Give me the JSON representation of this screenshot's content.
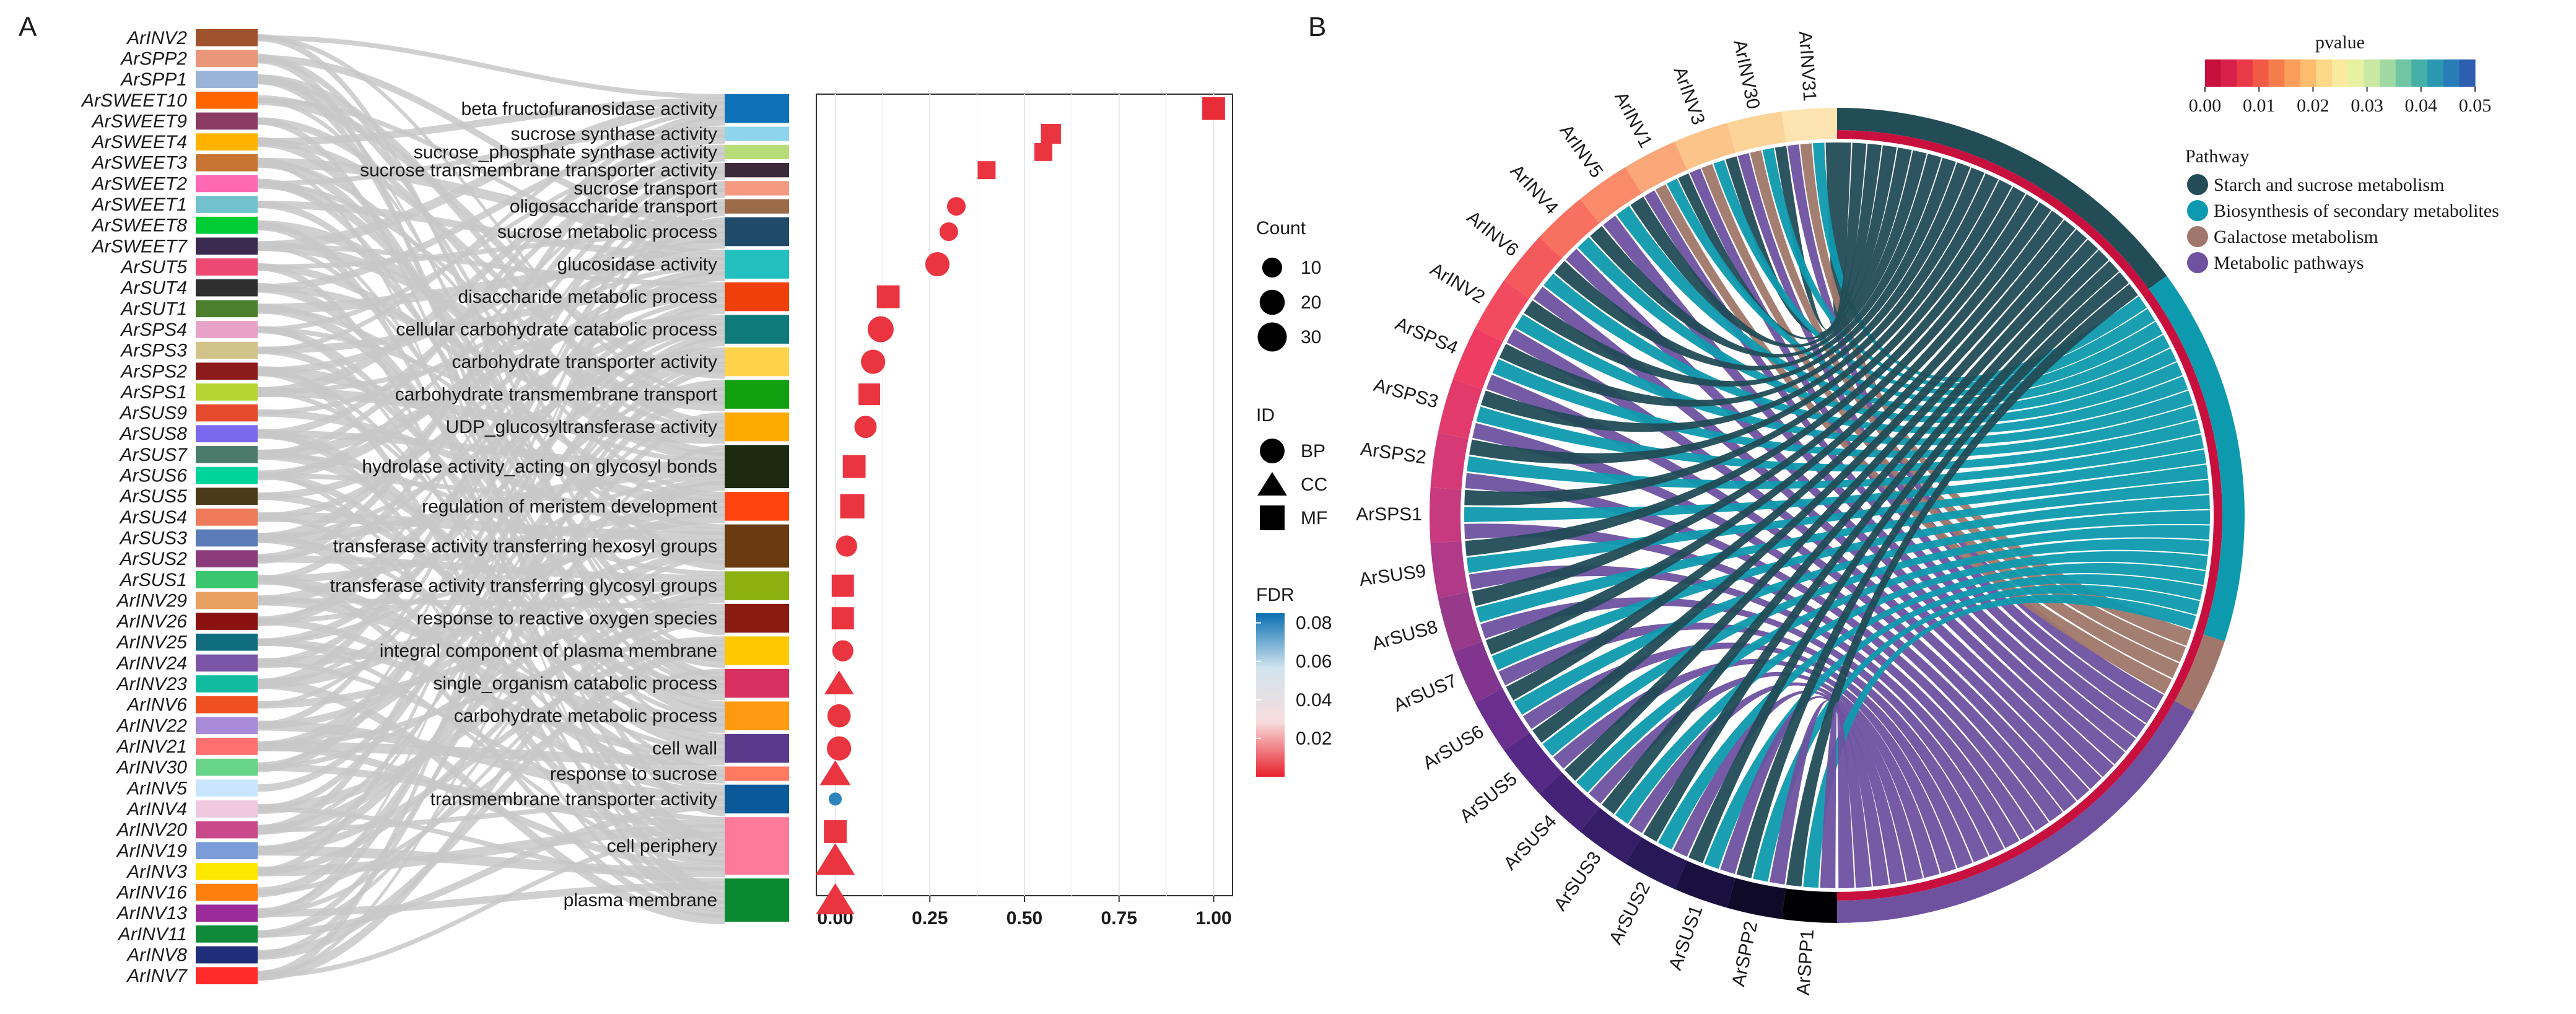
{
  "figure": {
    "panel_a_label": "A",
    "panel_b_label": "B"
  },
  "chart_data": [
    {
      "type": "sankey",
      "panel": "A",
      "genes": [
        "ArINV2",
        "ArSPP2",
        "ArSPP1",
        "ArSWEET10",
        "ArSWEET9",
        "ArSWEET4",
        "ArSWEET3",
        "ArSWEET2",
        "ArSWEET1",
        "ArSWEET8",
        "ArSWEET7",
        "ArSUT5",
        "ArSUT4",
        "ArSUT1",
        "ArSPS4",
        "ArSPS3",
        "ArSPS2",
        "ArSPS1",
        "ArSUS9",
        "ArSUS8",
        "ArSUS7",
        "ArSUS6",
        "ArSUS5",
        "ArSUS4",
        "ArSUS3",
        "ArSUS2",
        "ArSUS1",
        "ArINV29",
        "ArINV26",
        "ArINV25",
        "ArINV24",
        "ArINV23",
        "ArINV6",
        "ArINV22",
        "ArINV21",
        "ArINV30",
        "ArINV5",
        "ArINV4",
        "ArINV20",
        "ArINV19",
        "ArINV3",
        "ArINV16",
        "ArINV13",
        "ArINV11",
        "ArINV8",
        "ArINV7"
      ],
      "gene_colors": [
        "#a0522d",
        "#e9967a",
        "#9ab4d8",
        "#ff6600",
        "#8b3a62",
        "#ffb300",
        "#c87533",
        "#ff69b4",
        "#72c2ce",
        "#00cc33",
        "#3b2a50",
        "#ec4a73",
        "#2f2f2f",
        "#4b7f2b",
        "#e6a2c7",
        "#d2c38a",
        "#8b1a1a",
        "#b8d432",
        "#e64a2c",
        "#7b68ee",
        "#4a7b6b",
        "#00d49a",
        "#4b3a1a",
        "#ee7a5a",
        "#5a7ab8",
        "#8b3a7a",
        "#39c66e",
        "#e8a060",
        "#8b1010",
        "#106d7d",
        "#7b55a8",
        "#10bba0",
        "#f05020",
        "#a88ad8",
        "#ff7070",
        "#68d488",
        "#c8e6ff",
        "#f0c8e0",
        "#c84a8a",
        "#7b9cd8",
        "#ffe800",
        "#ff7f0e",
        "#9b2a9b",
        "#0f8a3a",
        "#1e2e7a",
        "#ff2a2a"
      ],
      "terms": [
        "beta fructofuranosidase activity",
        "sucrose synthase activity",
        "sucrose_phosphate synthase activity",
        "sucrose transmembrane transporter activity",
        "sucrose transport",
        "oligosaccharide transport",
        "sucrose metabolic process",
        "glucosidase activity",
        "disaccharide metabolic process",
        "cellular carbohydrate catabolic process",
        "carbohydrate transporter activity",
        "carbohydrate transmembrane transport",
        "UDP_glucosyltransferase activity",
        "hydrolase activity_acting on glycosyl bonds",
        "regulation of meristem development",
        "transferase activity transferring hexosyl groups",
        "transferase activity transferring glycosyl groups",
        "response to reactive oxygen species",
        "integral component of plasma membrane",
        "single_organism catabolic process",
        "carbohydrate metabolic process",
        "cell wall",
        "response to sucrose",
        "transmembrane transporter activity",
        "cell periphery",
        "plasma membrane"
      ],
      "term_colors": [
        "#0d72b8",
        "#8fd4ef",
        "#b8dc78",
        "#3a2a3a",
        "#f59a80",
        "#9b6b48",
        "#1f4a6a",
        "#24c0c0",
        "#f0400a",
        "#0f7a7a",
        "#ffd24a",
        "#10a010",
        "#ffaa00",
        "#1c2a10",
        "#ff4410",
        "#6a3a10",
        "#8bb010",
        "#8b1a10",
        "#ffc800",
        "#d83060",
        "#ff9a10",
        "#5a3a8a",
        "#ff7a60",
        "#0a5a9a",
        "#ff7a9a",
        "#0a8a30"
      ],
      "term_rows": [
        2,
        1,
        1,
        1,
        1,
        1,
        2,
        2,
        2,
        2,
        2,
        2,
        2,
        3,
        2,
        3,
        2,
        2,
        2,
        2,
        2,
        2,
        1,
        2,
        4,
        3
      ],
      "links": "grey ribbons from each gene (left) to each associated GO term (right)"
    },
    {
      "type": "scatter",
      "panel": "A",
      "xlim": [
        -0.05,
        1.05
      ],
      "xticks": [
        "0.00",
        "0.25",
        "0.50",
        "0.75",
        "1.00"
      ],
      "xtick_values": [
        0,
        0.25,
        0.5,
        0.75,
        1.0
      ],
      "points": [
        {
          "term": "beta fructofuranosidase activity",
          "x": 1.0,
          "id": "MF",
          "fdr": 0.002,
          "count": 15
        },
        {
          "term": "sucrose synthase activity",
          "x": 0.57,
          "id": "MF",
          "fdr": 0.003,
          "count": 10
        },
        {
          "term": "sucrose_phosphate synthase activity",
          "x": 0.55,
          "id": "MF",
          "fdr": 0.003,
          "count": 7
        },
        {
          "term": "sucrose transmembrane transporter activity",
          "x": 0.4,
          "id": "MF",
          "fdr": 0.003,
          "count": 7
        },
        {
          "term": "oligosaccharide transport",
          "x": 0.32,
          "id": "BP",
          "fdr": 0.003,
          "count": 8
        },
        {
          "term": "sucrose metabolic process",
          "x": 0.3,
          "id": "BP",
          "fdr": 0.003,
          "count": 8
        },
        {
          "term": "glucosidase activity",
          "x": 0.27,
          "id": "BP",
          "fdr": 0.003,
          "count": 18
        },
        {
          "term": "disaccharide metabolic process",
          "x": 0.14,
          "id": "MF",
          "fdr": 0.003,
          "count": 15
        },
        {
          "term": "cellular carbohydrate catabolic process",
          "x": 0.12,
          "id": "BP",
          "fdr": 0.003,
          "count": 22
        },
        {
          "term": "carbohydrate transporter activity",
          "x": 0.1,
          "id": "BP",
          "fdr": 0.003,
          "count": 18
        },
        {
          "term": "carbohydrate transmembrane transport",
          "x": 0.09,
          "id": "MF",
          "fdr": 0.003,
          "count": 13
        },
        {
          "term": "UDP_glucosyltransferase activity",
          "x": 0.08,
          "id": "BP",
          "fdr": 0.003,
          "count": 14
        },
        {
          "term": "hydrolase activity_acting on glycosyl bonds",
          "x": 0.05,
          "id": "MF",
          "fdr": 0.003,
          "count": 15
        },
        {
          "term": "regulation of meristem development",
          "x": 0.045,
          "id": "MF",
          "fdr": 0.003,
          "count": 18
        },
        {
          "term": "transferase activity transferring hexosyl groups",
          "x": 0.03,
          "id": "BP",
          "fdr": 0.003,
          "count": 12
        },
        {
          "term": "transferase activity transferring glycosyl groups",
          "x": 0.02,
          "id": "MF",
          "fdr": 0.003,
          "count": 14
        },
        {
          "term": "response to reactive oxygen species",
          "x": 0.02,
          "id": "MF",
          "fdr": 0.003,
          "count": 14
        },
        {
          "term": "integral component of plasma membrane",
          "x": 0.02,
          "id": "BP",
          "fdr": 0.003,
          "count": 12
        },
        {
          "term": "single_organism catabolic process",
          "x": 0.01,
          "id": "CC",
          "fdr": 0.003,
          "count": 14
        },
        {
          "term": "carbohydrate metabolic process",
          "x": 0.01,
          "id": "BP",
          "fdr": 0.003,
          "count": 16
        },
        {
          "term": "cell wall",
          "x": 0.01,
          "id": "BP",
          "fdr": 0.003,
          "count": 18
        },
        {
          "term": "response to sucrose",
          "x": 0.0,
          "id": "CC",
          "fdr": 0.003,
          "count": 16
        },
        {
          "term": "transmembrane transporter activity",
          "x": 0.0,
          "id": "BP",
          "fdr": 0.08,
          "count": 2
        },
        {
          "term": "cell periphery",
          "x": 0.0,
          "id": "MF",
          "fdr": 0.003,
          "count": 15
        },
        {
          "term": "cell periphery",
          "x": 0.0,
          "id": "CC",
          "fdr": 0.003,
          "count": 32
        },
        {
          "term": "plasma membrane",
          "x": 0.0,
          "id": "CC",
          "fdr": 0.003,
          "count": 30
        }
      ],
      "legend": {
        "count": {
          "title": "Count",
          "values": [
            10,
            20,
            30
          ]
        },
        "id": {
          "title": "ID",
          "values": [
            "BP",
            "CC",
            "MF"
          ],
          "shapes": [
            "circle",
            "triangle",
            "square"
          ]
        },
        "fdr": {
          "title": "FDR",
          "ticks": [
            "0.08",
            "0.06",
            "0.04",
            "0.02"
          ],
          "tick_values": [
            0.08,
            0.06,
            0.04,
            0.02
          ],
          "range": [
            0,
            0.085
          ],
          "colors": [
            "#0a6fb0",
            "#d0e4ef",
            "#f8dcdc",
            "#e8202c"
          ]
        }
      }
    },
    {
      "type": "chord",
      "panel": "B",
      "genes": [
        "ArINV31",
        "ArINV30",
        "ArINV3",
        "ArINV1",
        "ArINV5",
        "ArINV4",
        "ArINV6",
        "ArINV2",
        "ArSPS4",
        "ArSPS3",
        "ArSPS2",
        "ArSPS1",
        "ArSUS9",
        "ArSUS8",
        "ArSUS7",
        "ArSUS6",
        "ArSUS5",
        "ArSUS4",
        "ArSUS3",
        "ArSUS2",
        "ArSUS1",
        "ArSPP2",
        "ArSPP1"
      ],
      "gene_arc_colors": [
        "#fde4b0",
        "#fcd49a",
        "#fbc489",
        "#faa87a",
        "#f98a6a",
        "#f77060",
        "#f45a5c",
        "#f24a5e",
        "#ee3d62",
        "#e33a6c",
        "#d53a76",
        "#c83a80",
        "#b03a88",
        "#983a8a",
        "#82358e",
        "#6a2f8e",
        "#552a86",
        "#452478",
        "#361d68",
        "#281858",
        "#1a1040",
        "#0e0a28",
        "#000004"
      ],
      "pathways": [
        {
          "name": "Starch and sucrose metabolism",
          "color": "#224c56",
          "arc_fraction": 0.3
        },
        {
          "name": "Biosynthesis of secondary metabolites",
          "color": "#0e9aae",
          "arc_fraction": 0.3
        },
        {
          "name": "Galactose metabolism",
          "color": "#a0776a",
          "arc_fraction": 0.06
        },
        {
          "name": "Metabolic pathways",
          "color": "#6e52a0",
          "arc_fraction": 0.34
        }
      ],
      "pathway_pvalue_color": "#c8103e",
      "legend": {
        "pvalue_title": "pvalue",
        "pvalue_ticks": [
          "0.00",
          "0.01",
          "0.02",
          "0.03",
          "0.04",
          "0.05"
        ],
        "pvalue_tick_values": [
          0.0,
          0.01,
          0.02,
          0.03,
          0.04,
          0.05
        ],
        "pvalue_colors": [
          "#c8103e",
          "#d8204a",
          "#ea3a4a",
          "#f25a48",
          "#f77c4c",
          "#fa9e5a",
          "#fcbc6e",
          "#fdd888",
          "#f8eba0",
          "#e6f2a2",
          "#c8e8a4",
          "#a0d8a4",
          "#70c6a4",
          "#44b0a8",
          "#2a98b0",
          "#2a7cb8",
          "#2e5eb0"
        ],
        "pathway_title": "Pathway"
      }
    }
  ]
}
